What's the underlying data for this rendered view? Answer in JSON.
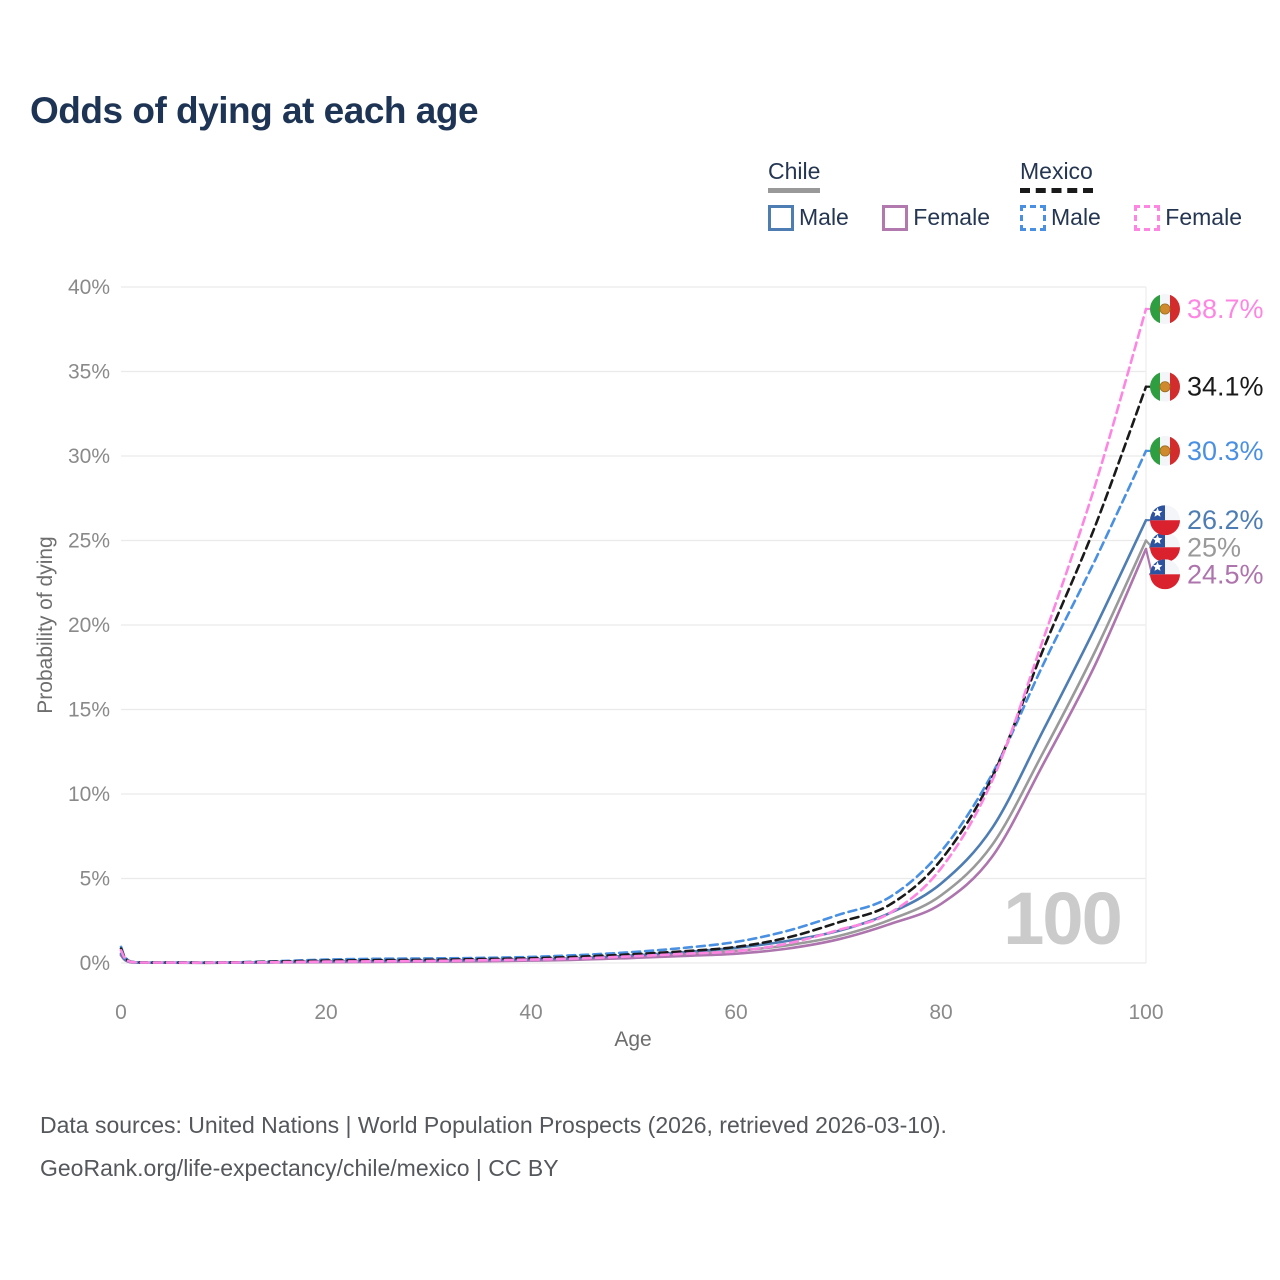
{
  "header": {
    "title": "Odds of dying at each age"
  },
  "legend": {
    "groups": [
      {
        "label": "Chile",
        "line_style": "solid",
        "line_color": "#999999",
        "items": [
          {
            "label": "Male",
            "color": "#4d7db3",
            "dashed": false
          },
          {
            "label": "Female",
            "color": "#b279ae",
            "dashed": false
          }
        ]
      },
      {
        "label": "Mexico",
        "line_style": "dashed",
        "line_color": "#1a1a1a",
        "items": [
          {
            "label": "Male",
            "color": "#4a90e2",
            "dashed": true
          },
          {
            "label": "Female",
            "color": "#ff85e3",
            "dashed": true
          }
        ]
      }
    ]
  },
  "chart_data": {
    "type": "line",
    "title": "Odds of dying at each age",
    "xlabel": "Age",
    "ylabel": "Probability of dying",
    "xlim": [
      0,
      100
    ],
    "ylim": [
      0,
      40
    ],
    "xticks": [
      0,
      20,
      40,
      60,
      80,
      100
    ],
    "yticks": [
      0,
      5,
      10,
      15,
      20,
      25,
      30,
      35,
      40
    ],
    "ytick_suffix": "%",
    "grid": "horizontal",
    "legend_position": "top-right",
    "watermark": "100",
    "x": [
      0,
      1,
      5,
      10,
      15,
      20,
      25,
      30,
      35,
      40,
      45,
      50,
      55,
      60,
      65,
      70,
      75,
      80,
      85,
      90,
      95,
      100
    ],
    "series": [
      {
        "id": "chile-total",
        "name": "Chile",
        "country": "cl",
        "color": "#9a9a9a",
        "dash": false,
        "values": [
          0.5,
          0.045,
          0.018,
          0.018,
          0.04,
          0.08,
          0.1,
          0.11,
          0.14,
          0.18,
          0.25,
          0.37,
          0.53,
          0.72,
          1.05,
          1.6,
          2.55,
          4.0,
          7.0,
          12.5,
          18.4,
          25.0
        ],
        "label": "25%",
        "label_pct": 24.6
      },
      {
        "id": "chile-female",
        "name": "Chile Female",
        "country": "cl",
        "color": "#ad74ad",
        "dash": false,
        "values": [
          0.45,
          0.04,
          0.015,
          0.015,
          0.03,
          0.05,
          0.06,
          0.08,
          0.1,
          0.14,
          0.2,
          0.3,
          0.42,
          0.55,
          0.85,
          1.4,
          2.3,
          3.5,
          6.3,
          11.8,
          17.6,
          24.5
        ],
        "label": "24.5%",
        "label_pct": 23.0
      },
      {
        "id": "chile-male",
        "name": "Chile Male",
        "country": "cl",
        "color": "#4d7db3",
        "dash": false,
        "values": [
          0.55,
          0.05,
          0.02,
          0.02,
          0.05,
          0.1,
          0.12,
          0.14,
          0.17,
          0.22,
          0.3,
          0.45,
          0.65,
          0.9,
          1.3,
          1.9,
          2.95,
          4.7,
          8.0,
          13.8,
          19.8,
          26.2
        ],
        "label": "26.2%",
        "label_pct": 26.2
      },
      {
        "id": "mexico-male",
        "name": "Mexico Male",
        "country": "mx",
        "color": "#4a90e2",
        "dash": true,
        "values": [
          0.95,
          0.07,
          0.03,
          0.03,
          0.1,
          0.2,
          0.25,
          0.27,
          0.3,
          0.36,
          0.48,
          0.65,
          0.9,
          1.25,
          1.9,
          2.85,
          3.9,
          6.6,
          11.2,
          17.7,
          23.8,
          30.3
        ],
        "label": "30.3%",
        "label_pct": 30.3
      },
      {
        "id": "mexico-total",
        "name": "Mexico",
        "country": "mx",
        "color": "#1a1a1a",
        "dash": true,
        "values": [
          0.85,
          0.065,
          0.028,
          0.028,
          0.08,
          0.14,
          0.17,
          0.19,
          0.23,
          0.28,
          0.38,
          0.52,
          0.7,
          0.95,
          1.5,
          2.4,
          3.45,
          6.1,
          11.0,
          18.6,
          25.8,
          34.1
        ],
        "label": "34.1%",
        "label_pct": 34.1
      },
      {
        "id": "mexico-female",
        "name": "Mexico Female",
        "country": "mx",
        "color": "#ff85e3",
        "dash": true,
        "values": [
          0.75,
          0.06,
          0.025,
          0.025,
          0.05,
          0.08,
          0.1,
          0.12,
          0.16,
          0.2,
          0.28,
          0.4,
          0.55,
          0.7,
          1.15,
          1.95,
          2.95,
          5.6,
          10.8,
          19.2,
          28.2,
          38.7
        ],
        "label": "38.7%",
        "label_pct": 38.7
      }
    ],
    "flag_colors": {
      "mx_green": "#2f9e41",
      "mx_red": "#d32c2c",
      "mx_emblem": "#cf8a2e",
      "cl_blue": "#2d53a0",
      "cl_red": "#d9222e",
      "cl_white": "#f4f5f8"
    }
  },
  "footer": {
    "line1": "Data sources: United Nations | World Population Prospects (2026, retrieved 2026-03-10).",
    "line2": "GeoRank.org/life-expectancy/chile/mexico | CC BY"
  }
}
